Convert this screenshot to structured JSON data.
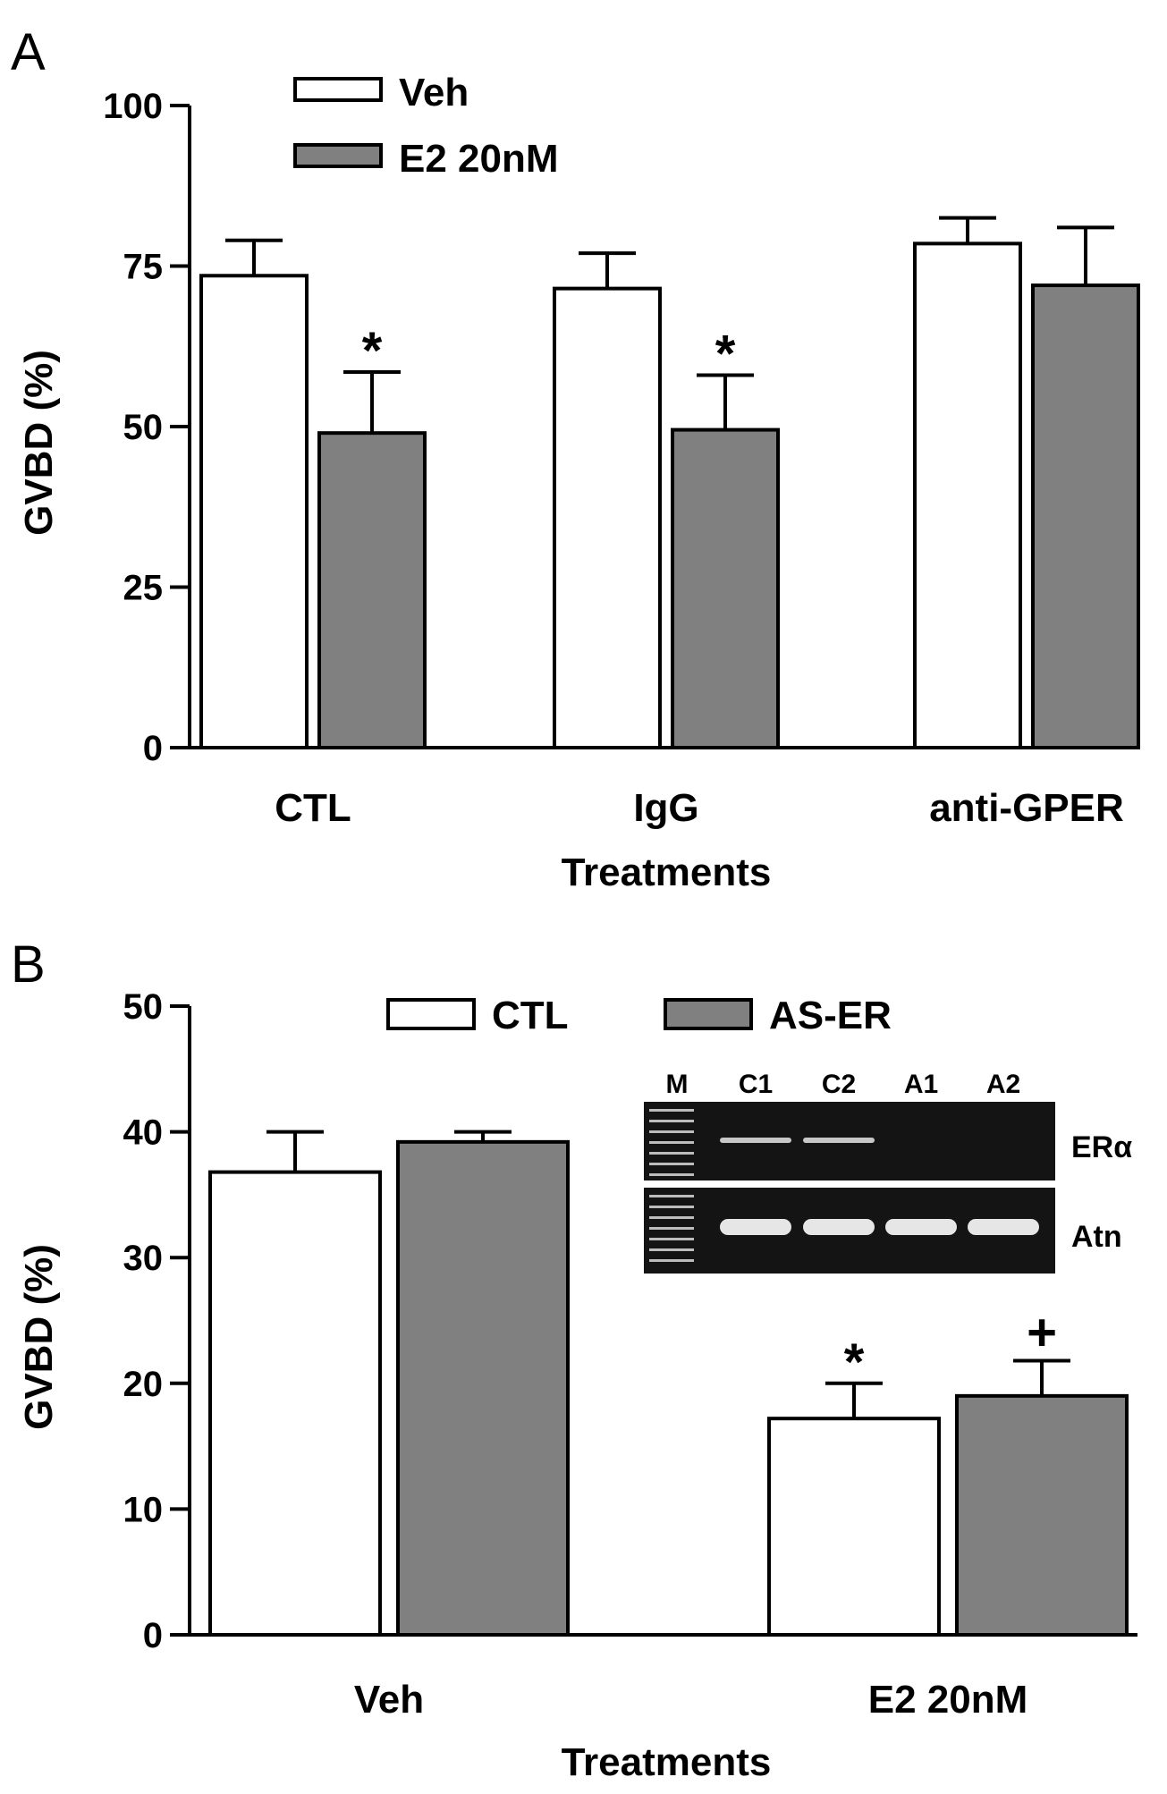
{
  "colors": {
    "series_open": "#ffffff",
    "series_filled": "#808080",
    "stroke": "#000000",
    "gel_bg": "#141414",
    "gel_band": "#e6e6e6"
  },
  "chart_data": [
    {
      "panel": "A",
      "type": "bar",
      "ylabel": "GVBD (%)",
      "xlabel": "Treatments",
      "ylim": [
        0,
        100
      ],
      "yticks": [
        0,
        25,
        50,
        75,
        100
      ],
      "categories": [
        "CTL",
        "IgG",
        "anti-GPER"
      ],
      "legend_placement": "top-left",
      "series": [
        {
          "name": "Veh",
          "style": "open",
          "values": [
            73.5,
            71.5,
            78.5
          ],
          "errors": [
            5.5,
            5.5,
            4.0
          ]
        },
        {
          "name": "E2 20nM",
          "style": "filled",
          "values": [
            49,
            49.5,
            72
          ],
          "errors": [
            9.5,
            8.5,
            9.0
          ]
        }
      ],
      "annotations": [
        {
          "category": 0,
          "series": 1,
          "text": "*"
        },
        {
          "category": 1,
          "series": 1,
          "text": "*"
        }
      ]
    },
    {
      "panel": "B",
      "type": "bar",
      "ylabel": "GVBD (%)",
      "xlabel": "Treatments",
      "ylim": [
        0,
        50
      ],
      "yticks": [
        0,
        10,
        20,
        30,
        40,
        50
      ],
      "categories": [
        "Veh",
        "E2 20nM"
      ],
      "legend_placement": "top",
      "series": [
        {
          "name": "CTL",
          "style": "open",
          "values": [
            36.8,
            17.2
          ],
          "errors": [
            3.2,
            2.8
          ]
        },
        {
          "name": "AS-ER",
          "style": "filled",
          "values": [
            39.2,
            19.0
          ],
          "errors": [
            0.8,
            2.8
          ]
        }
      ],
      "annotations": [
        {
          "category": 1,
          "series": 0,
          "text": "*"
        },
        {
          "category": 1,
          "series": 1,
          "text": "+"
        }
      ],
      "inset_gel": {
        "lanes": [
          "M",
          "C1",
          "C2",
          "A1",
          "A2"
        ],
        "rows": [
          {
            "label": "ERα",
            "bands": [
              false,
              true,
              true,
              false,
              false
            ]
          },
          {
            "label": "Atn",
            "bands": [
              false,
              true,
              true,
              true,
              true
            ]
          }
        ]
      }
    }
  ]
}
